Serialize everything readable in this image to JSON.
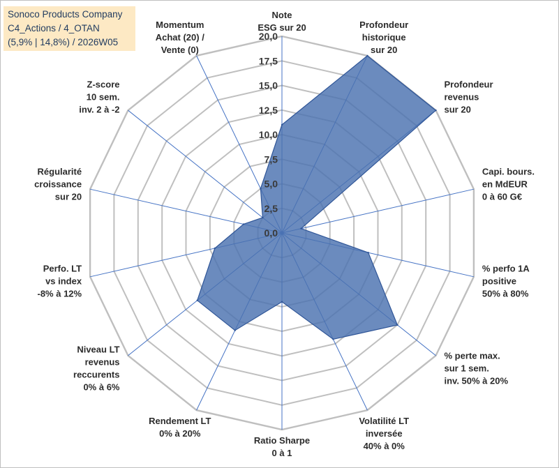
{
  "title_box": {
    "line1": "Sonoco Products Company",
    "line2": "C4_Actions / 4_OTAN",
    "line3": "(5,9% | 14,8%) / 2026W05"
  },
  "colors": {
    "grid": "#bfbfbf",
    "spoke": "#4472c4",
    "fill": "#4a72b0",
    "stroke": "#2f5597",
    "title_bg": "#fde9c4",
    "title_text": "#1f3a5f"
  },
  "chart_data": {
    "type": "radar",
    "range": [
      0,
      20
    ],
    "ticks": [
      "0,0",
      "2,5",
      "5,0",
      "7,5",
      "10,0",
      "12,5",
      "15,0",
      "17,5",
      "20,0"
    ],
    "grid": true,
    "axes": [
      {
        "label": [
          "Note",
          "ESG sur 20"
        ]
      },
      {
        "label": [
          "Profondeur",
          "historique",
          "sur 20"
        ]
      },
      {
        "label": [
          "Profondeur",
          "revenus",
          "sur 20"
        ]
      },
      {
        "label": [
          "Capi. bours.",
          "en MdEUR",
          "0 à 60 G€"
        ]
      },
      {
        "label": [
          "% perfo 1A",
          "positive",
          "50% à 80%"
        ]
      },
      {
        "label": [
          "% perte max.",
          "sur 1 sem.",
          "inv. 50% à 20%"
        ]
      },
      {
        "label": [
          "Volatilité LT",
          "inversée",
          "40% à 0%"
        ]
      },
      {
        "label": [
          "Ratio Sharpe",
          "0 à 1"
        ]
      },
      {
        "label": [
          "Rendement LT",
          "0% à 20%"
        ]
      },
      {
        "label": [
          "Niveau LT",
          "revenus",
          "reccurents",
          "0% à 6%"
        ]
      },
      {
        "label": [
          "Perfo. LT",
          "vs index",
          "-8% à 12%"
        ]
      },
      {
        "label": [
          "Régularité",
          "croissance",
          "sur 20"
        ]
      },
      {
        "label": [
          "Z-score",
          "10 sem.",
          "inv. 2 à -2"
        ]
      },
      {
        "label": [
          "Momentum",
          "Achat (20) /",
          "Vente (0)"
        ]
      }
    ],
    "series": [
      {
        "values": [
          11.0,
          20.0,
          20.0,
          2.0,
          9.0,
          15.0,
          12.0,
          7.0,
          11.0,
          11.0,
          7.0,
          4.0,
          2.5,
          5.0
        ]
      }
    ]
  }
}
